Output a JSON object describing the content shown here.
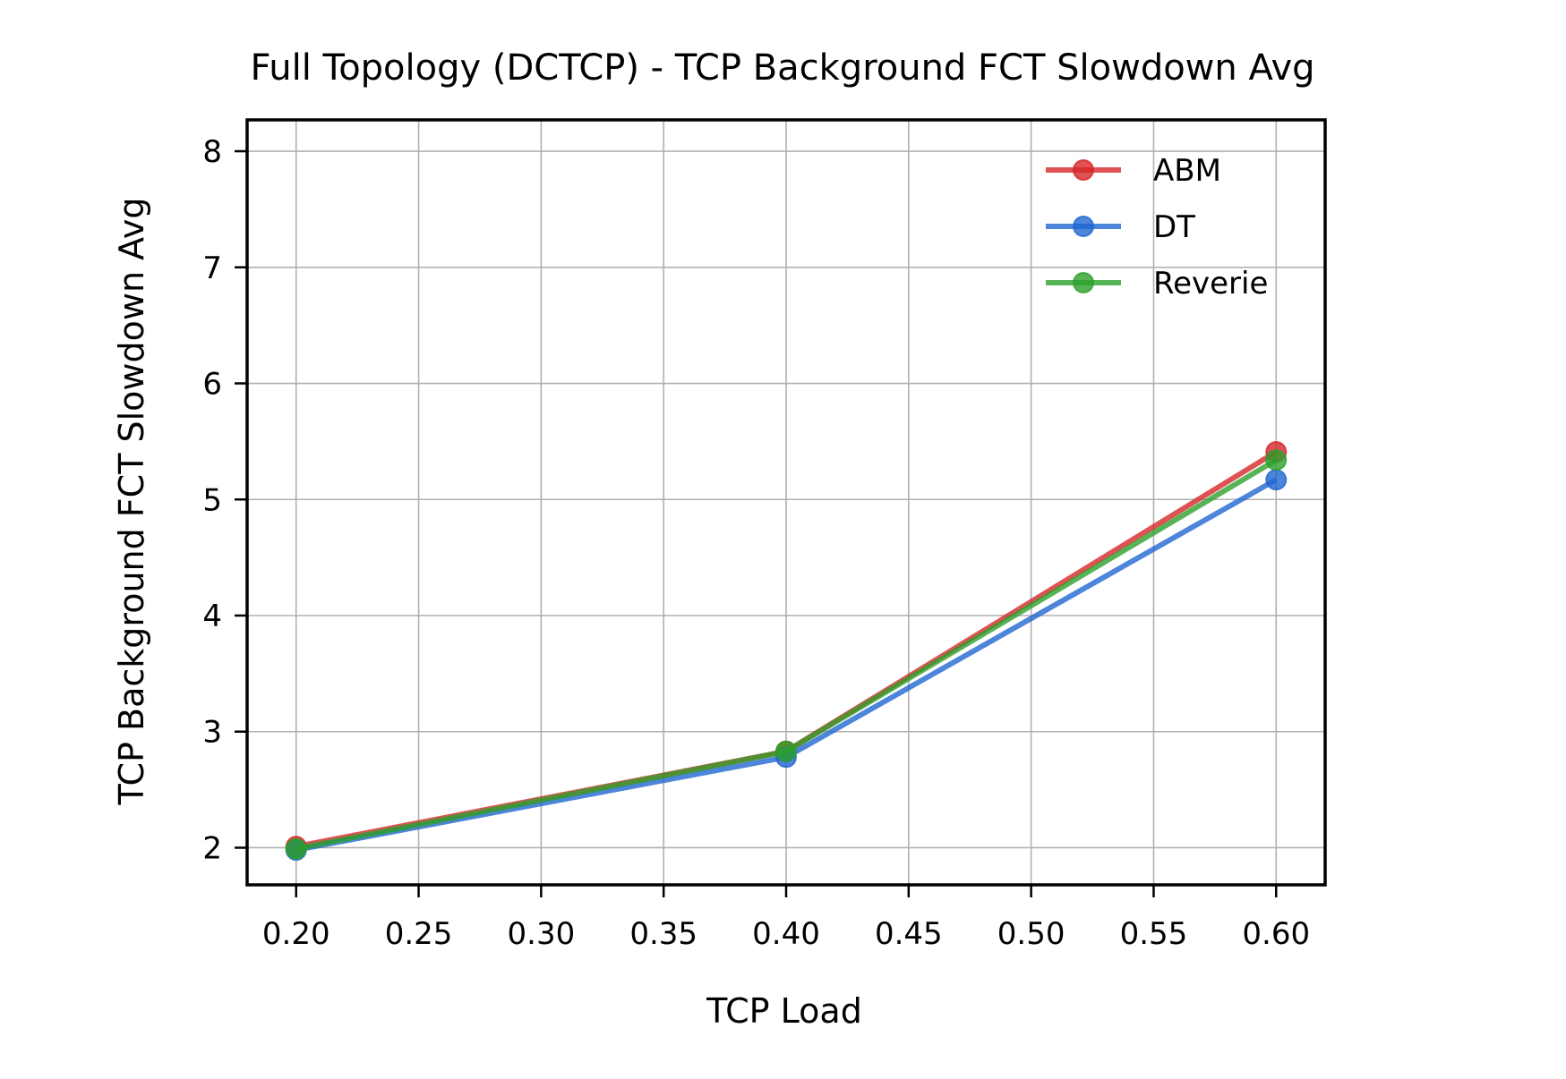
{
  "chart_data": {
    "type": "line",
    "title": "Full Topology (DCTCP) - TCP Background FCT Slowdown Avg",
    "xlabel": "TCP Load",
    "ylabel": "TCP Background FCT Slowdown Avg",
    "xlim": [
      0.18,
      0.62
    ],
    "ylim": [
      1.68,
      8.27
    ],
    "xticks": [
      0.2,
      0.25,
      0.3,
      0.35,
      0.4,
      0.45,
      0.5,
      0.55,
      0.6
    ],
    "xtick_labels": [
      "0.20",
      "0.25",
      "0.30",
      "0.35",
      "0.40",
      "0.45",
      "0.50",
      "0.55",
      "0.60"
    ],
    "yticks": [
      2,
      3,
      4,
      5,
      6,
      7,
      8
    ],
    "ytick_labels": [
      "2",
      "3",
      "4",
      "5",
      "6",
      "7",
      "8"
    ],
    "grid": true,
    "legend_position": "top-right",
    "x": [
      0.2,
      0.4,
      0.6
    ],
    "series": [
      {
        "name": "ABM",
        "color": "#d62728",
        "values": [
          2.01,
          2.83,
          5.41
        ]
      },
      {
        "name": "DT",
        "color": "#1f66d1",
        "values": [
          1.98,
          2.78,
          5.17
        ]
      },
      {
        "name": "Reverie",
        "color": "#2ca02c",
        "values": [
          1.99,
          2.83,
          5.34
        ]
      }
    ]
  }
}
